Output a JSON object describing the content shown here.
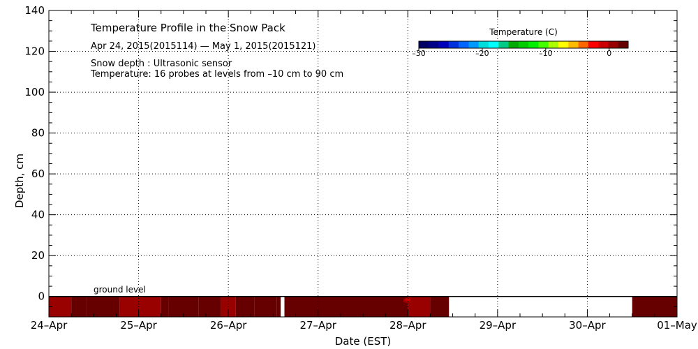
{
  "chart_data": {
    "type": "heatmap",
    "title": "Temperature Profile in the Snow Pack",
    "subtitle": "Apr 24, 2015(2015114) — May  1, 2015(2015121)",
    "notes": [
      "Snow depth : Ultrasonic sensor",
      "Temperature: 16 probes at levels from –10 cm to 90 cm"
    ],
    "xlabel": "Date (EST)",
    "ylabel": "Depth, cm",
    "x_ticks": [
      "24–Apr",
      "25–Apr",
      "26–Apr",
      "27–Apr",
      "28–Apr",
      "29–Apr",
      "30–Apr",
      "01–May"
    ],
    "xlim": [
      "2015-04-24",
      "2015-05-01"
    ],
    "ylim": [
      -10,
      140
    ],
    "y_ticks": [
      0,
      20,
      40,
      60,
      80,
      100,
      120,
      140
    ],
    "grid": true,
    "annotation": "ground level",
    "colorbar": {
      "title": "Temperature (C)",
      "range": [
        -30,
        3
      ],
      "ticks": [
        -30,
        -20,
        -10,
        0
      ],
      "tick_labels": [
        "–30",
        "–20",
        "–10",
        "0"
      ],
      "colors": [
        "#000066",
        "#000088",
        "#0000bb",
        "#0033dd",
        "#0066ff",
        "#0099ff",
        "#00dddd",
        "#00ffff",
        "#00cc88",
        "#00aa00",
        "#00cc00",
        "#00ee00",
        "#44ff00",
        "#aaff00",
        "#ffff00",
        "#ffbb00",
        "#ff6600",
        "#ff0000",
        "#cc0000",
        "#990000",
        "#660000"
      ]
    },
    "snow_surface_cm": 0,
    "bands": [
      {
        "start": "2015-04-24T00:00",
        "end": "2015-04-24T06:00",
        "temp_c": 0.8
      },
      {
        "start": "2015-04-24T06:00",
        "end": "2015-04-24T10:00",
        "temp_c": 1.6
      },
      {
        "start": "2015-04-24T10:00",
        "end": "2015-04-24T19:00",
        "temp_c": 2.6
      },
      {
        "start": "2015-04-24T19:00",
        "end": "2015-04-25T06:00",
        "temp_c": 0.8
      },
      {
        "start": "2015-04-25T06:00",
        "end": "2015-04-25T08:00",
        "temp_c": 1.8
      },
      {
        "start": "2015-04-25T08:00",
        "end": "2015-04-25T16:00",
        "temp_c": 2.6
      },
      {
        "start": "2015-04-25T16:00",
        "end": "2015-04-25T22:00",
        "temp_c": 1.8
      },
      {
        "start": "2015-04-25T22:00",
        "end": "2015-04-26T02:00",
        "temp_c": 0.8
      },
      {
        "start": "2015-04-26T02:00",
        "end": "2015-04-26T07:00",
        "temp_c": 1.8
      },
      {
        "start": "2015-04-26T07:00",
        "end": "2015-04-26T13:00",
        "temp_c": 2.6
      },
      {
        "start": "2015-04-26T13:00",
        "end": "2015-04-26T14:00",
        "temp_c": 1.8
      },
      {
        "start": "2015-04-26T15:00",
        "end": "2015-04-28T00:00",
        "temp_c": 2.6
      },
      {
        "start": "2015-04-28T00:00",
        "end": "2015-04-28T06:00",
        "temp_c": 0.8
      },
      {
        "start": "2015-04-28T06:00",
        "end": "2015-04-28T11:00",
        "temp_c": 2.6
      },
      {
        "start": "2015-04-30T12:00",
        "end": "2015-05-01T00:00",
        "temp_c": 2.6
      }
    ],
    "warm_spots": [
      {
        "time": "2015-04-28T00:00",
        "depth_cm": -2,
        "temp_c": 0.3
      },
      {
        "time": "2015-04-28T00:00",
        "depth_cm": -1.5,
        "temp_c": -1.5
      }
    ]
  }
}
